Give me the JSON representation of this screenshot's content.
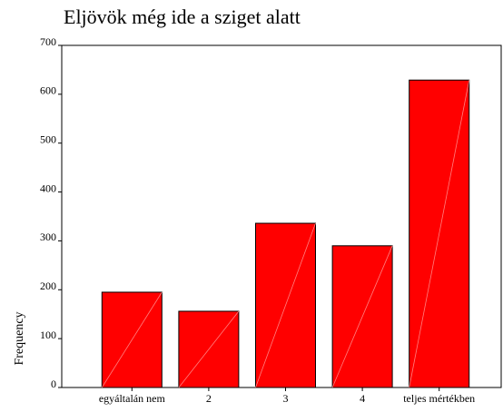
{
  "chart_data": {
    "type": "bar",
    "title": "Eljövök még ide a sziget alatt",
    "y_label": "Frequency",
    "categories": [
      "egyáltalán nem",
      "2",
      "3",
      "4",
      "teljes mértékben"
    ],
    "values": [
      195,
      156,
      336,
      290,
      629
    ],
    "color": "#ff0000",
    "ylim": [
      0,
      700
    ],
    "yticks": [
      0,
      100,
      200,
      300,
      400,
      500,
      600,
      700
    ],
    "grid": false
  }
}
